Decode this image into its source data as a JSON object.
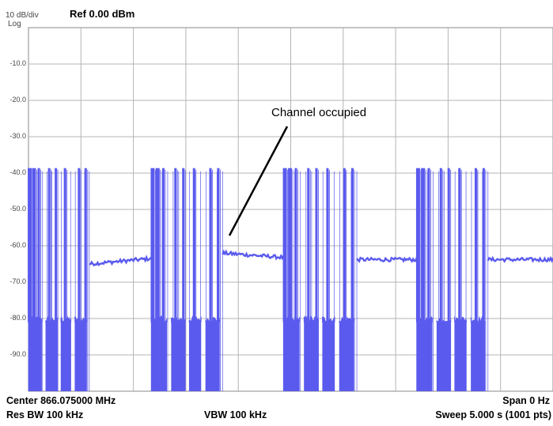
{
  "header": {
    "scale": "10 dB/div",
    "mode": "Log",
    "ref": "Ref 0.00 dBm"
  },
  "footer": {
    "center": "Center 866.075000 MHz",
    "span": "Span 0 Hz",
    "rbw": "Res BW 100 kHz",
    "vbw": "VBW 100 kHz",
    "sweep": "Sweep  5.000 s (1001 pts)"
  },
  "annotation": "Channel occupied",
  "chart_data": {
    "type": "line",
    "grid": true,
    "ylim": [
      -100,
      0
    ],
    "xlim": [
      0,
      5
    ],
    "x_unit": "s",
    "y_unit": "dBm",
    "y_ticks": [
      "-10.0",
      "-20.0",
      "-30.0",
      "-40.0",
      "-50.0",
      "-60.0",
      "-70.0",
      "-80.0",
      "-90.0"
    ],
    "series_color": "#5a5aee",
    "segments": [
      {
        "type": "burst",
        "x_start": 0.0,
        "x_end": 0.58,
        "high": -39.5,
        "low": -81
      },
      {
        "type": "flat",
        "x_start": 0.58,
        "x_end": 1.17,
        "level_start": -65,
        "level_end": -63.5
      },
      {
        "type": "burst",
        "x_start": 1.17,
        "x_end": 1.85,
        "high": -39.5,
        "low": -81
      },
      {
        "type": "flat",
        "x_start": 1.85,
        "x_end": 2.43,
        "level_start": -62,
        "level_end": -63.2
      },
      {
        "type": "burst",
        "x_start": 2.43,
        "x_end": 3.13,
        "high": -39.5,
        "low": -81
      },
      {
        "type": "flat",
        "x_start": 3.13,
        "x_end": 3.7,
        "level_start": -63.8,
        "level_end": -63.8
      },
      {
        "type": "burst",
        "x_start": 3.7,
        "x_end": 4.38,
        "high": -39.5,
        "low": -81
      },
      {
        "type": "flat",
        "x_start": 4.38,
        "x_end": 5.0,
        "level_start": -63.8,
        "level_end": -63.8
      }
    ]
  }
}
